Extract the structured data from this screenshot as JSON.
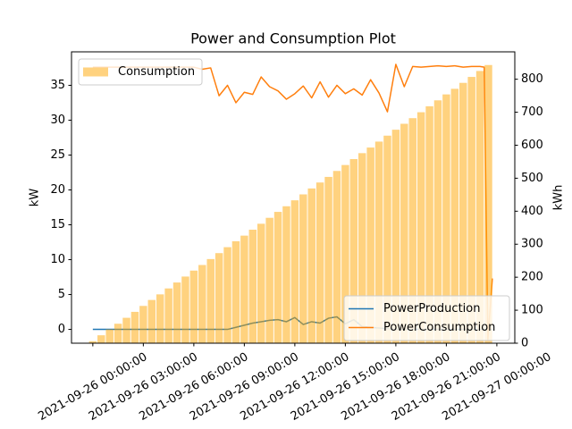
{
  "chart_data": {
    "type": "combo",
    "title": "Power and Consumption Plot",
    "ylabel": "kW",
    "y2label": "kWh",
    "xlim": [
      "2021-09-25 22:44:00",
      "2021-09-27 01:04:00"
    ],
    "xticks": [
      "2021-09-26 00:00:00",
      "2021-09-26 03:00:00",
      "2021-09-26 06:00:00",
      "2021-09-26 09:00:00",
      "2021-09-26 12:00:00",
      "2021-09-26 15:00:00",
      "2021-09-26 18:00:00",
      "2021-09-26 21:00:00",
      "2021-09-27 00:00:00"
    ],
    "ylim": [
      -1.98,
      39.8
    ],
    "yticks": [
      0,
      5,
      10,
      15,
      20,
      25,
      30,
      35
    ],
    "y2lim": [
      0,
      883
    ],
    "y2ticks": [
      0,
      100,
      200,
      300,
      400,
      500,
      600,
      700,
      800
    ],
    "grid": false,
    "series": [
      {
        "name": "Consumption",
        "type": "bar",
        "axis": "y2",
        "color": "#ffa500",
        "legend": "upper left",
        "x": [
          "2021-09-26 00:00:00",
          "2021-09-26 00:30:00",
          "2021-09-26 01:00:00",
          "2021-09-26 01:30:00",
          "2021-09-26 02:00:00",
          "2021-09-26 02:30:00",
          "2021-09-26 03:00:00",
          "2021-09-26 03:30:00",
          "2021-09-26 04:00:00",
          "2021-09-26 04:30:00",
          "2021-09-26 05:00:00",
          "2021-09-26 05:30:00",
          "2021-09-26 06:00:00",
          "2021-09-26 06:30:00",
          "2021-09-26 07:00:00",
          "2021-09-26 07:30:00",
          "2021-09-26 08:00:00",
          "2021-09-26 08:30:00",
          "2021-09-26 09:00:00",
          "2021-09-26 09:30:00",
          "2021-09-26 10:00:00",
          "2021-09-26 10:30:00",
          "2021-09-26 11:00:00",
          "2021-09-26 11:30:00",
          "2021-09-26 12:00:00",
          "2021-09-26 12:30:00",
          "2021-09-26 13:00:00",
          "2021-09-26 13:30:00",
          "2021-09-26 14:00:00",
          "2021-09-26 14:30:00",
          "2021-09-26 15:00:00",
          "2021-09-26 15:30:00",
          "2021-09-26 16:00:00",
          "2021-09-26 16:30:00",
          "2021-09-26 17:00:00",
          "2021-09-26 17:30:00",
          "2021-09-26 18:00:00",
          "2021-09-26 18:30:00",
          "2021-09-26 19:00:00",
          "2021-09-26 19:30:00",
          "2021-09-26 20:00:00",
          "2021-09-26 20:30:00",
          "2021-09-26 21:00:00",
          "2021-09-26 21:30:00",
          "2021-09-26 22:00:00",
          "2021-09-26 22:30:00",
          "2021-09-26 23:00:00",
          "2021-09-26 23:30:00"
        ],
        "values": [
          6,
          24,
          42,
          59,
          77,
          95,
          113,
          131,
          148,
          166,
          184,
          202,
          220,
          237,
          255,
          273,
          291,
          309,
          326,
          344,
          362,
          380,
          398,
          415,
          433,
          451,
          469,
          487,
          504,
          522,
          540,
          558,
          576,
          593,
          611,
          629,
          647,
          665,
          682,
          700,
          718,
          736,
          754,
          771,
          789,
          807,
          825,
          843
        ]
      },
      {
        "name": "PowerProduction",
        "type": "line",
        "axis": "y",
        "color": "#1f77b4",
        "legend": "lower right",
        "x": [
          "2021-09-26 00:00:00",
          "2021-09-26 00:30:00",
          "2021-09-26 01:00:00",
          "2021-09-26 01:30:00",
          "2021-09-26 02:00:00",
          "2021-09-26 02:30:00",
          "2021-09-26 03:00:00",
          "2021-09-26 03:30:00",
          "2021-09-26 04:00:00",
          "2021-09-26 04:30:00",
          "2021-09-26 05:00:00",
          "2021-09-26 05:30:00",
          "2021-09-26 06:00:00",
          "2021-09-26 06:30:00",
          "2021-09-26 07:00:00",
          "2021-09-26 07:30:00",
          "2021-09-26 08:00:00",
          "2021-09-26 08:30:00",
          "2021-09-26 09:00:00",
          "2021-09-26 09:30:00",
          "2021-09-26 10:00:00",
          "2021-09-26 10:30:00",
          "2021-09-26 11:00:00",
          "2021-09-26 11:30:00",
          "2021-09-26 12:00:00",
          "2021-09-26 12:30:00",
          "2021-09-26 13:00:00",
          "2021-09-26 13:30:00",
          "2021-09-26 14:00:00",
          "2021-09-26 14:30:00",
          "2021-09-26 15:00:00",
          "2021-09-26 15:30:00",
          "2021-09-26 16:00:00",
          "2021-09-26 16:30:00",
          "2021-09-26 17:00:00",
          "2021-09-26 17:30:00",
          "2021-09-26 18:00:00",
          "2021-09-26 18:30:00",
          "2021-09-26 19:00:00",
          "2021-09-26 19:30:00",
          "2021-09-26 20:00:00",
          "2021-09-26 20:30:00",
          "2021-09-26 21:00:00",
          "2021-09-26 21:30:00",
          "2021-09-26 22:00:00",
          "2021-09-26 22:30:00",
          "2021-09-26 23:00:00",
          "2021-09-26 23:15:00",
          "2021-09-26 23:28:00",
          "2021-09-26 23:44:00"
        ],
        "values": [
          0,
          0,
          0,
          0,
          0,
          0,
          0,
          0,
          0,
          0,
          0,
          0,
          0,
          0,
          0,
          0,
          0,
          0.3,
          0.6,
          0.9,
          1.1,
          1.3,
          1.4,
          1.1,
          1.7,
          0.7,
          1.1,
          0.9,
          1.6,
          1.8,
          0.8,
          1.4,
          0.4,
          0.3,
          0.2,
          0.1,
          0,
          0,
          0,
          0,
          0,
          0,
          0,
          0,
          0,
          0,
          0,
          0,
          0,
          0
        ]
      },
      {
        "name": "PowerConsumption",
        "type": "line",
        "axis": "y",
        "color": "#ff7f0e",
        "legend": "lower right",
        "x": [
          "2021-09-26 00:00:00",
          "2021-09-26 00:30:00",
          "2021-09-26 01:00:00",
          "2021-09-26 01:30:00",
          "2021-09-26 02:00:00",
          "2021-09-26 02:30:00",
          "2021-09-26 03:00:00",
          "2021-09-26 03:30:00",
          "2021-09-26 04:00:00",
          "2021-09-26 04:30:00",
          "2021-09-26 05:00:00",
          "2021-09-26 05:30:00",
          "2021-09-26 06:00:00",
          "2021-09-26 06:30:00",
          "2021-09-26 07:00:00",
          "2021-09-26 07:30:00",
          "2021-09-26 08:00:00",
          "2021-09-26 08:30:00",
          "2021-09-26 09:00:00",
          "2021-09-26 09:30:00",
          "2021-09-26 10:00:00",
          "2021-09-26 10:30:00",
          "2021-09-26 11:00:00",
          "2021-09-26 11:30:00",
          "2021-09-26 12:00:00",
          "2021-09-26 12:30:00",
          "2021-09-26 13:00:00",
          "2021-09-26 13:30:00",
          "2021-09-26 14:00:00",
          "2021-09-26 14:30:00",
          "2021-09-26 15:00:00",
          "2021-09-26 15:30:00",
          "2021-09-26 16:00:00",
          "2021-09-26 16:30:00",
          "2021-09-26 17:00:00",
          "2021-09-26 17:30:00",
          "2021-09-26 18:00:00",
          "2021-09-26 18:30:00",
          "2021-09-26 19:00:00",
          "2021-09-26 19:30:00",
          "2021-09-26 20:00:00",
          "2021-09-26 20:30:00",
          "2021-09-26 21:00:00",
          "2021-09-26 21:30:00",
          "2021-09-26 22:00:00",
          "2021-09-26 22:30:00",
          "2021-09-26 23:00:00",
          "2021-09-26 23:15:00",
          "2021-09-26 23:28:00",
          "2021-09-26 23:44:00"
        ],
        "values": [
          37.6,
          37.6,
          37.6,
          37.6,
          37.6,
          37.6,
          37.6,
          37.6,
          37.6,
          37.6,
          37.6,
          37.6,
          37.6,
          37.3,
          37.5,
          33.5,
          35.0,
          32.5,
          34.0,
          33.7,
          36.2,
          34.8,
          34.2,
          33.0,
          33.8,
          34.9,
          33.2,
          35.5,
          33.3,
          35.0,
          33.8,
          34.5,
          33.6,
          35.8,
          33.9,
          31.2,
          38.0,
          34.8,
          37.7,
          37.6,
          37.7,
          37.8,
          37.7,
          37.8,
          37.6,
          37.7,
          37.7,
          37.6,
          -1.5,
          7.3
        ]
      }
    ]
  }
}
